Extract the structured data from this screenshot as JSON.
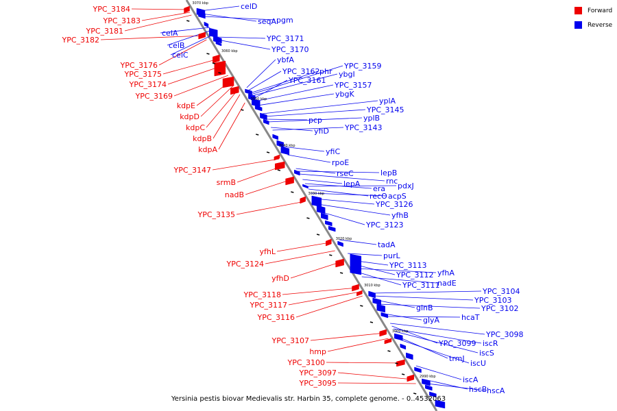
{
  "caption": "Yersinia pestis biovar Medievalis str. Harbin 35, complete genome. - 0..4532063",
  "legend": [
    {
      "label": "Forward",
      "color": "#ee0000"
    },
    {
      "label": "Reverse",
      "color": "#0000ee"
    }
  ],
  "colors": {
    "forward": "#ee0000",
    "reverse": "#0000ee",
    "backbone": "#888888"
  },
  "ticks": [
    "3070 kbp",
    "3060 kbp",
    "3050 kbp",
    "3040 kbp",
    "3030 kbp",
    "3020 kbp",
    "3010 kbp",
    "3000 kbp",
    "2990 kbp"
  ],
  "forward_genes": [
    "YPC_3184",
    "YPC_3183",
    "YPC_3181",
    "YPC_3182",
    "YPC_3176",
    "YPC_3175",
    "YPC_3174",
    "YPC_3169",
    "kdpE",
    "kdpD",
    "kdpC",
    "kdpB",
    "kdpA",
    "YPC_3147",
    "srmB",
    "nadB",
    "YPC_3135",
    "yfhL",
    "YPC_3124",
    "yfhD",
    "YPC_3118",
    "YPC_3117",
    "YPC_3116",
    "YPC_3107",
    "hmp",
    "YPC_3100",
    "YPC_3097",
    "YPC_3095"
  ],
  "reverse_genes": [
    "celD",
    "seqA",
    "pgm",
    "celA",
    "celB",
    "celC",
    "YPC_3171",
    "YPC_3170",
    "ybfA",
    "YPC_3162",
    "phr",
    "YPC_3159",
    "ybgI",
    "YPC_3161",
    "YPC_3157",
    "ybgK",
    "yplA",
    "YPC_3145",
    "pcp",
    "yplB",
    "yfiD",
    "YPC_3143",
    "yfiC",
    "rpoE",
    "rseC",
    "lepB",
    "rnc",
    "lepA",
    "era",
    "pdxJ",
    "recO",
    "acpS",
    "YPC_3126",
    "yfhB",
    "YPC_3123",
    "tadA",
    "purL",
    "YPC_3113",
    "YPC_3112",
    "yfhA",
    "YPC_3111",
    "nadE",
    "YPC_3104",
    "YPC_3103",
    "glnB",
    "YPC_3102",
    "glyA",
    "hcaT",
    "YPC_3098",
    "YPC_3099",
    "iscR",
    "iscS",
    "trmJ",
    "iscU",
    "iscA",
    "hscB",
    "hscA"
  ]
}
